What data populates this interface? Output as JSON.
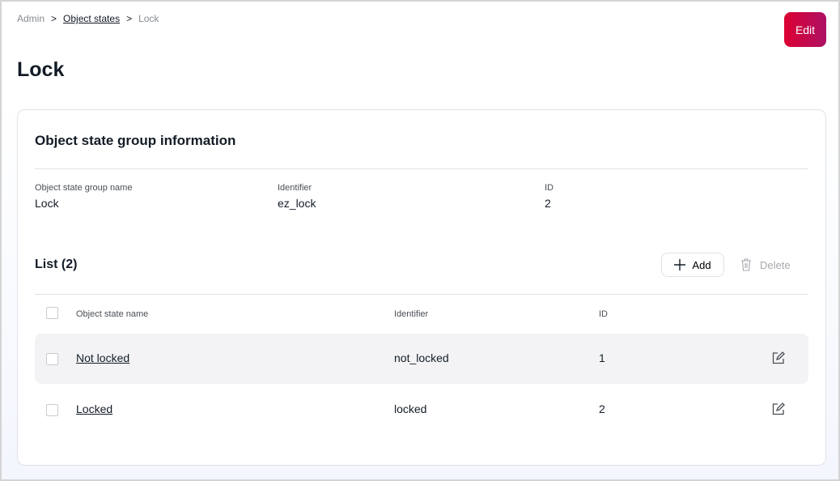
{
  "breadcrumb": [
    "Admin",
    "Object states",
    "Lock"
  ],
  "edit_label": "Edit",
  "page_title": "Lock",
  "info": {
    "title": "Object state group information",
    "fields": [
      {
        "label": "Object state group name",
        "value": "Lock"
      },
      {
        "label": "Identifier",
        "value": "ez_lock"
      },
      {
        "label": "ID",
        "value": "2"
      }
    ]
  },
  "list": {
    "title": "List (2)",
    "add_label": "Add",
    "delete_label": "Delete",
    "columns": [
      "Object state name",
      "Identifier",
      "ID"
    ],
    "rows": [
      {
        "name": "Not locked",
        "identifier": "not_locked",
        "id": "1"
      },
      {
        "name": "Locked",
        "identifier": "locked",
        "id": "2"
      }
    ]
  },
  "colors": {
    "accent_start": "#db0032",
    "accent_end": "#ae1164"
  }
}
